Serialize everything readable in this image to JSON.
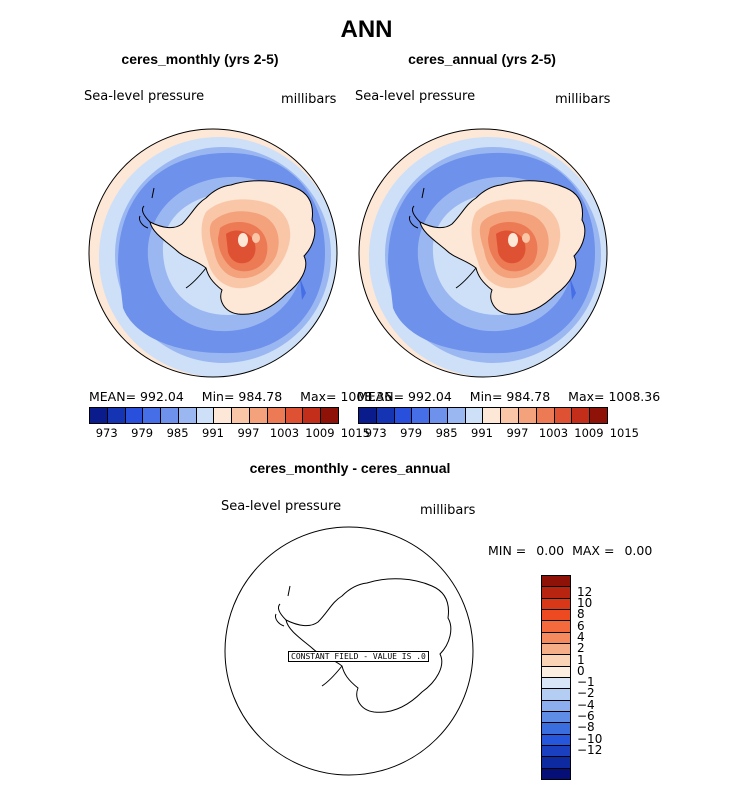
{
  "title": "ANN",
  "panels": [
    {
      "title": "ceres_monthly (yrs 2-5)",
      "variable": "Sea-level pressure",
      "units": "millibars",
      "stats": {
        "mean_label": "MEAN=",
        "mean": "992.04",
        "min_label": "Min=",
        "min": "984.78",
        "max_label": "Max=",
        "max": "1008.36"
      }
    },
    {
      "title": "ceres_annual (yrs 2-5)",
      "variable": "Sea-level pressure",
      "units": "millibars",
      "stats": {
        "mean_label": "MEAN=",
        "mean": "992.04",
        "min_label": "Min=",
        "min": "984.78",
        "max_label": "Max=",
        "max": "1008.36"
      }
    }
  ],
  "colorbar": {
    "colors": [
      "#0a1c8c",
      "#1434b4",
      "#2850dc",
      "#466ee6",
      "#6e91eb",
      "#9bb7f2",
      "#cde0f8",
      "#fde7d6",
      "#f9c7a8",
      "#f3a27c",
      "#ec7a55",
      "#df5133",
      "#c22e1a",
      "#8e1208"
    ],
    "ticks": [
      "973",
      "979",
      "985",
      "991",
      "997",
      "1003",
      "1009",
      "1015"
    ]
  },
  "diff_panel": {
    "title": "ceres_monthly - ceres_annual",
    "variable": "Sea-level pressure",
    "units": "millibars",
    "min_label": "MIN =",
    "min": "0.00",
    "max_label": "MAX =",
    "max": "0.00",
    "constant_field_note": "CONSTANT FIELD - VALUE IS .0",
    "colorbar": {
      "colors": [
        "#8e1208",
        "#b7240f",
        "#d83818",
        "#ee4a22",
        "#f46a3c",
        "#f48a5e",
        "#f5ae88",
        "#fbd4b8",
        "#fdeee2",
        "#d9e6f8",
        "#b4cdf3",
        "#8caeee",
        "#5f8de6",
        "#3a6ede",
        "#2556dc",
        "#1a40c0",
        "#0e2aa0",
        "#060f78"
      ],
      "labels": [
        "12",
        "10",
        "8",
        "6",
        "4",
        "2",
        "1",
        "0",
        "−1",
        "−2",
        "−4",
        "−6",
        "−8",
        "−10",
        "−12"
      ]
    }
  }
}
